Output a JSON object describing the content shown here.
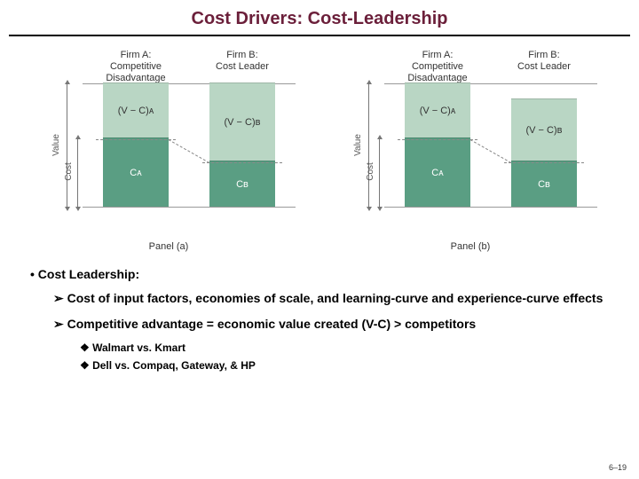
{
  "title": {
    "text": "Cost Drivers: Cost-Leadership",
    "color": "#6b1f3a",
    "fontsize": 20
  },
  "diagram": {
    "colors": {
      "vc_segment": "#b9d6c4",
      "c_segment": "#5a9e83",
      "border": "#999999",
      "dash": "#888888",
      "axis": "#777777"
    },
    "panels": [
      {
        "caption": "Panel (a)",
        "firms": [
          {
            "label": "Firm A:\nCompetitive\nDisadvantage",
            "vc_label": "(V − C)ᴀ",
            "c_label": "Cᴀ",
            "vc_h": 62,
            "c_h": 78
          },
          {
            "label": "Firm B:\nCost Leader",
            "vc_label": "(V − C)ʙ",
            "c_label": "Cʙ",
            "vc_h": 88,
            "c_h": 52
          }
        ],
        "dash": {
          "from_h": 78,
          "to_h": 52
        },
        "axes": {
          "value": "Value",
          "cost": "Cost"
        }
      },
      {
        "caption": "Panel (b)",
        "firms": [
          {
            "label": "Firm A:\nCompetitive\nDisadvantage",
            "vc_label": "(V − C)ᴀ",
            "c_label": "Cᴀ",
            "vc_h": 62,
            "c_h": 78
          },
          {
            "label": "Firm B:\nCost Leader",
            "vc_label": "(V − C)ʙ",
            "c_label": "Cʙ",
            "vc_h": 70,
            "c_h": 52
          }
        ],
        "dash": {
          "from_h": 78,
          "to_h": 52
        },
        "axes": {
          "value": "Value",
          "cost": "Cost"
        }
      }
    ]
  },
  "bullets": {
    "heading": "Cost Leadership:",
    "sub": [
      "Cost of input factors, economies of scale, and learning-curve and experience-curve effects",
      "Competitive advantage = economic value created (V-C) > competitors"
    ],
    "examples": [
      "Walmart vs. Kmart",
      "Dell vs. Compaq, Gateway, & HP"
    ]
  },
  "page": "6–19"
}
